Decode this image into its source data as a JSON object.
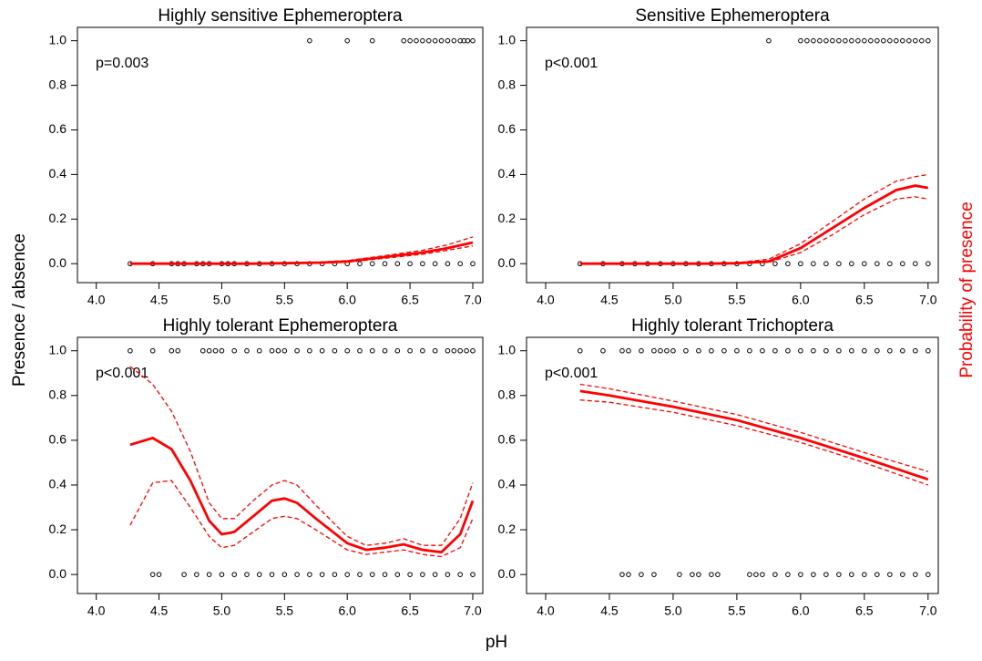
{
  "ylabel": "Presence / absence",
  "y2label": "Probability of presence",
  "xlabel": "pH",
  "chart_data": [
    {
      "type": "scatter",
      "title": "Highly sensitive Ephemeroptera",
      "annotation": "p=0.003",
      "xlim": [
        3.85,
        7.08
      ],
      "ylim": [
        -0.085,
        1.06
      ],
      "xticks": [
        {
          "value": 4,
          "label": "4.0"
        },
        4.5,
        {
          "value": 5,
          "label": "5.0"
        },
        5.5,
        {
          "value": 6,
          "label": "6.0"
        },
        6.5,
        {
          "value": 7,
          "label": "7.0"
        }
      ],
      "yticks": [
        {
          "value": 0,
          "label": "0.0"
        },
        0.2,
        0.4,
        0.6,
        0.8,
        {
          "value": 1,
          "label": "1.0"
        }
      ],
      "fit_color": "#ff0000",
      "point_color": "#000000",
      "points": {
        "x": [
          5.7,
          6.0,
          6.2,
          6.45,
          6.5,
          6.55,
          6.6,
          6.65,
          6.7,
          6.75,
          6.8,
          6.85,
          6.9,
          6.93,
          6.96,
          7.0,
          4.27,
          4.45,
          4.6,
          4.65,
          4.7,
          4.8,
          4.85,
          4.9,
          5.0,
          5.05,
          5.1,
          5.2,
          5.3,
          5.4,
          5.5,
          5.6,
          5.7,
          5.8,
          5.9,
          6.0,
          6.1,
          6.2,
          6.3,
          6.4,
          6.5,
          6.6,
          6.7,
          6.8,
          6.9,
          7.0
        ],
        "y": [
          1,
          1,
          1,
          1,
          1,
          1,
          1,
          1,
          1,
          1,
          1,
          1,
          1,
          1,
          1,
          1,
          0,
          0,
          0,
          0,
          0,
          0,
          0,
          0,
          0,
          0,
          0,
          0,
          0,
          0,
          0,
          0,
          0,
          0,
          0,
          0,
          0,
          0,
          0,
          0,
          0,
          0,
          0,
          0,
          0,
          0
        ]
      },
      "fit": {
        "x": [
          4.27,
          4.75,
          5.25,
          5.5,
          5.8,
          6.0,
          6.3,
          6.6,
          6.8,
          7.0
        ],
        "values": [
          0,
          0,
          0,
          0.002,
          0.005,
          0.01,
          0.03,
          0.05,
          0.07,
          0.095
        ],
        "lower": [
          0,
          0,
          0,
          0.001,
          0.003,
          0.007,
          0.024,
          0.042,
          0.06,
          0.08
        ],
        "upper": [
          0,
          0,
          0.001,
          0.003,
          0.008,
          0.014,
          0.036,
          0.06,
          0.085,
          0.12
        ]
      }
    },
    {
      "type": "scatter",
      "title": "Sensitive Ephemeroptera",
      "annotation": "p<0.001",
      "xlim": [
        3.85,
        7.08
      ],
      "ylim": [
        -0.085,
        1.06
      ],
      "xticks": [
        {
          "value": 4,
          "label": "4.0"
        },
        4.5,
        {
          "value": 5,
          "label": "5.0"
        },
        5.5,
        {
          "value": 6,
          "label": "6.0"
        },
        6.5,
        {
          "value": 7,
          "label": "7.0"
        }
      ],
      "yticks": [
        {
          "value": 0,
          "label": "0.0"
        },
        0.2,
        0.4,
        0.6,
        0.8,
        {
          "value": 1,
          "label": "1.0"
        }
      ],
      "fit_color": "#ff0000",
      "point_color": "#000000",
      "points": {
        "x": [
          5.75,
          6.0,
          6.05,
          6.1,
          6.15,
          6.2,
          6.25,
          6.3,
          6.35,
          6.4,
          6.45,
          6.5,
          6.55,
          6.6,
          6.65,
          6.7,
          6.75,
          6.8,
          6.85,
          6.9,
          6.95,
          7.0,
          4.27,
          4.45,
          4.6,
          4.7,
          4.8,
          4.9,
          5.0,
          5.1,
          5.2,
          5.3,
          5.4,
          5.5,
          5.6,
          5.7,
          5.8,
          5.9,
          6.0,
          6.1,
          6.2,
          6.3,
          6.4,
          6.5,
          6.6,
          6.7,
          6.8,
          6.9,
          7.0
        ],
        "y": [
          1,
          1,
          1,
          1,
          1,
          1,
          1,
          1,
          1,
          1,
          1,
          1,
          1,
          1,
          1,
          1,
          1,
          1,
          1,
          1,
          1,
          1,
          0,
          0,
          0,
          0,
          0,
          0,
          0,
          0,
          0,
          0,
          0,
          0,
          0,
          0,
          0,
          0,
          0,
          0,
          0,
          0,
          0,
          0,
          0,
          0,
          0,
          0,
          0
        ]
      },
      "fit": {
        "x": [
          4.27,
          4.75,
          5.25,
          5.5,
          5.75,
          6.0,
          6.25,
          6.5,
          6.75,
          6.9,
          7.0
        ],
        "values": [
          0,
          0,
          0,
          0.002,
          0.01,
          0.07,
          0.16,
          0.25,
          0.33,
          0.35,
          0.34
        ],
        "lower": [
          0,
          0,
          0,
          0.001,
          0.006,
          0.05,
          0.13,
          0.22,
          0.29,
          0.3,
          0.29
        ],
        "upper": [
          0,
          0,
          0.001,
          0.004,
          0.02,
          0.09,
          0.19,
          0.29,
          0.37,
          0.39,
          0.4
        ]
      }
    },
    {
      "type": "scatter",
      "title": "Highly tolerant Ephemeroptera",
      "annotation": "p<0.001",
      "xlim": [
        3.85,
        7.08
      ],
      "ylim": [
        -0.085,
        1.06
      ],
      "xticks": [
        {
          "value": 4,
          "label": "4.0"
        },
        4.5,
        {
          "value": 5,
          "label": "5.0"
        },
        5.5,
        {
          "value": 6,
          "label": "6.0"
        },
        6.5,
        {
          "value": 7,
          "label": "7.0"
        }
      ],
      "yticks": [
        {
          "value": 0,
          "label": "0.0"
        },
        0.2,
        0.4,
        0.6,
        0.8,
        {
          "value": 1,
          "label": "1.0"
        }
      ],
      "fit_color": "#ff0000",
      "point_color": "#000000",
      "points": {
        "x": [
          4.27,
          4.45,
          4.6,
          4.65,
          4.85,
          4.9,
          4.95,
          5.0,
          5.1,
          5.2,
          5.3,
          5.4,
          5.45,
          5.5,
          5.6,
          5.7,
          5.8,
          5.9,
          6.0,
          6.1,
          6.2,
          6.3,
          6.4,
          6.5,
          6.6,
          6.7,
          6.8,
          6.85,
          6.9,
          6.95,
          7.0,
          4.45,
          4.5,
          4.7,
          4.8,
          4.9,
          5.0,
          5.1,
          5.2,
          5.3,
          5.4,
          5.5,
          5.6,
          5.7,
          5.8,
          5.9,
          6.0,
          6.1,
          6.2,
          6.3,
          6.4,
          6.5,
          6.6,
          6.7,
          6.8,
          6.9,
          7.0
        ],
        "y": [
          1,
          1,
          1,
          1,
          1,
          1,
          1,
          1,
          1,
          1,
          1,
          1,
          1,
          1,
          1,
          1,
          1,
          1,
          1,
          1,
          1,
          1,
          1,
          1,
          1,
          1,
          1,
          1,
          1,
          1,
          1,
          0,
          0,
          0,
          0,
          0,
          0,
          0,
          0,
          0,
          0,
          0,
          0,
          0,
          0,
          0,
          0,
          0,
          0,
          0,
          0,
          0,
          0,
          0,
          0,
          0,
          0
        ]
      },
      "fit": {
        "x": [
          4.27,
          4.45,
          4.6,
          4.75,
          4.9,
          5.0,
          5.1,
          5.25,
          5.4,
          5.5,
          5.6,
          5.75,
          6.0,
          6.15,
          6.3,
          6.45,
          6.6,
          6.75,
          6.9,
          7.0
        ],
        "values": [
          0.58,
          0.61,
          0.56,
          0.42,
          0.24,
          0.18,
          0.19,
          0.26,
          0.33,
          0.34,
          0.32,
          0.25,
          0.14,
          0.11,
          0.12,
          0.135,
          0.11,
          0.1,
          0.18,
          0.33
        ],
        "lower": [
          0.22,
          0.41,
          0.42,
          0.3,
          0.17,
          0.12,
          0.13,
          0.19,
          0.25,
          0.26,
          0.25,
          0.2,
          0.11,
          0.09,
          0.1,
          0.11,
          0.09,
          0.08,
          0.12,
          0.25
        ],
        "upper": [
          0.93,
          0.85,
          0.73,
          0.55,
          0.32,
          0.25,
          0.25,
          0.33,
          0.4,
          0.42,
          0.4,
          0.31,
          0.17,
          0.13,
          0.14,
          0.16,
          0.13,
          0.13,
          0.25,
          0.41
        ]
      }
    },
    {
      "type": "scatter",
      "title": "Highly tolerant Trichoptera",
      "annotation": "p<0.001",
      "xlim": [
        3.85,
        7.08
      ],
      "ylim": [
        -0.085,
        1.06
      ],
      "xticks": [
        {
          "value": 4,
          "label": "4.0"
        },
        4.5,
        {
          "value": 5,
          "label": "5.0"
        },
        5.5,
        {
          "value": 6,
          "label": "6.0"
        },
        6.5,
        {
          "value": 7,
          "label": "7.0"
        }
      ],
      "yticks": [
        {
          "value": 0,
          "label": "0.0"
        },
        0.2,
        0.4,
        0.6,
        0.8,
        {
          "value": 1,
          "label": "1.0"
        }
      ],
      "fit_color": "#ff0000",
      "point_color": "#000000",
      "points": {
        "x": [
          4.27,
          4.45,
          4.6,
          4.65,
          4.75,
          4.85,
          4.9,
          4.95,
          5.0,
          5.1,
          5.2,
          5.3,
          5.4,
          5.5,
          5.6,
          5.7,
          5.8,
          5.9,
          6.0,
          6.1,
          6.2,
          6.3,
          6.4,
          6.5,
          6.6,
          6.7,
          6.8,
          6.9,
          7.0,
          4.6,
          4.65,
          4.75,
          4.85,
          5.05,
          5.15,
          5.2,
          5.3,
          5.35,
          5.6,
          5.65,
          5.7,
          5.8,
          5.9,
          6.0,
          6.1,
          6.2,
          6.3,
          6.4,
          6.5,
          6.6,
          6.7,
          6.8,
          6.9,
          7.0
        ],
        "y": [
          1,
          1,
          1,
          1,
          1,
          1,
          1,
          1,
          1,
          1,
          1,
          1,
          1,
          1,
          1,
          1,
          1,
          1,
          1,
          1,
          1,
          1,
          1,
          1,
          1,
          1,
          1,
          1,
          1,
          0,
          0,
          0,
          0,
          0,
          0,
          0,
          0,
          0,
          0,
          0,
          0,
          0,
          0,
          0,
          0,
          0,
          0,
          0,
          0,
          0,
          0,
          0,
          0,
          0
        ]
      },
      "fit": {
        "x": [
          4.27,
          4.5,
          5.0,
          5.5,
          6.0,
          6.5,
          7.0
        ],
        "values": [
          0.82,
          0.8,
          0.75,
          0.69,
          0.61,
          0.52,
          0.425
        ],
        "lower": [
          0.78,
          0.77,
          0.725,
          0.665,
          0.59,
          0.5,
          0.4
        ],
        "upper": [
          0.85,
          0.83,
          0.775,
          0.715,
          0.635,
          0.545,
          0.46
        ]
      }
    }
  ]
}
